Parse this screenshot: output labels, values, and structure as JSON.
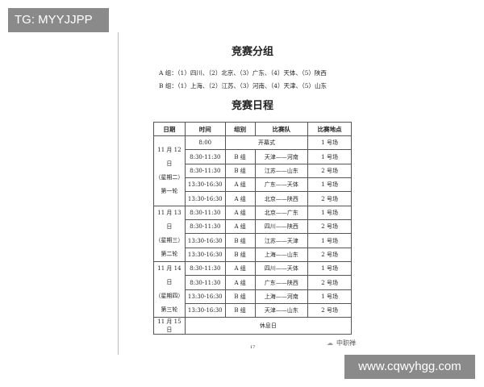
{
  "overlay_tag": "TG: MYYJJPP",
  "title_groups": "竞赛分组",
  "group_a": "A 组：（1）四川、（2）北京、（3）广东、（4）天体、（5）陕西",
  "group_b": "B 组：（1）上海、（2）江苏、（3）河南、（4）天津、（5）山东",
  "title_schedule": "竞赛日程",
  "table": {
    "headers": [
      "日期",
      "时间",
      "组别",
      "比赛队",
      "比赛地点"
    ],
    "opening": {
      "time": "8:00",
      "label": "开幕式",
      "venue": "1 号场"
    },
    "rounds": [
      {
        "date": [
          "11 月 12 日",
          "（星期二）",
          "第一轮"
        ],
        "rows": [
          [
            "8:30-11:30",
            "B 组",
            "天津——河南",
            "1 号场"
          ],
          [
            "8:30-11:30",
            "B 组",
            "江苏——山东",
            "2 号场"
          ],
          [
            "13:30-16:30",
            "A 组",
            "广东——天体",
            "1 号场"
          ],
          [
            "13:30-16:30",
            "A 组",
            "北京——陕西",
            "2 号场"
          ]
        ]
      },
      {
        "date": [
          "11 月 13 日",
          "（星期三）",
          "第二轮"
        ],
        "rows": [
          [
            "8:30-11:30",
            "A 组",
            "北京——广东",
            "1 号场"
          ],
          [
            "8:30-11:30",
            "A 组",
            "四川——陕西",
            "2 号场"
          ],
          [
            "13:30-16:30",
            "B 组",
            "江苏——天津",
            "1 号场"
          ],
          [
            "13:30-16:30",
            "B 组",
            "上海——山东",
            "2 号场"
          ]
        ]
      },
      {
        "date": [
          "11 月 14 日",
          "（星期四）",
          "第三轮"
        ],
        "rows": [
          [
            "8:30-11:30",
            "A 组",
            "四川——天体",
            "1 号场"
          ],
          [
            "8:30-11:30",
            "A 组",
            "广东——陕西",
            "2 号场"
          ],
          [
            "13:30-16:30",
            "B 组",
            "上海——河南",
            "1 号场"
          ],
          [
            "13:30-16:30",
            "B 组",
            "天津——山东",
            "2 号场"
          ]
        ]
      }
    ],
    "rest": {
      "date": "11 月 15 日",
      "label": "休息日"
    }
  },
  "page_number": "17",
  "watermark": "中职禅",
  "url_tag": "www.cqwyhgg.com"
}
